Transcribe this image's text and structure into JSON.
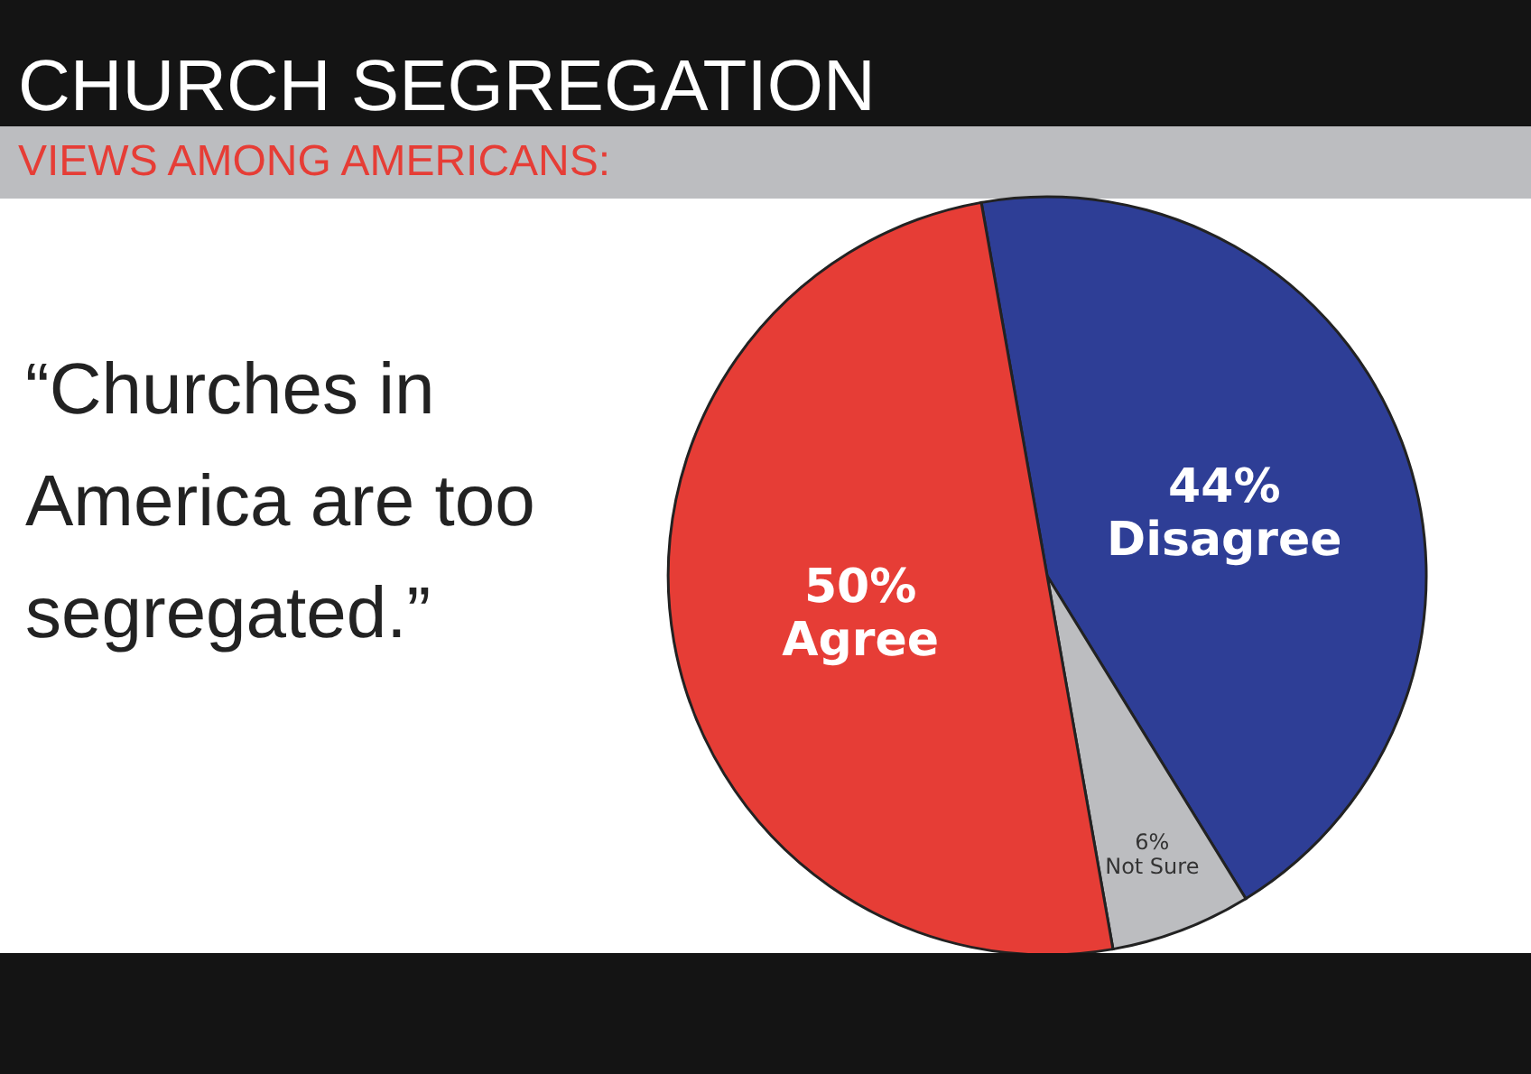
{
  "chart_data": {
    "type": "pie",
    "title": "CHURCH SEGREGATION",
    "subtitle": "VIEWS AMONG AMERICANS:",
    "annotations": [
      "“Churches in America are too segregated.”"
    ],
    "categories": [
      "Disagree",
      "Not Sure",
      "Agree"
    ],
    "values": [
      44,
      6,
      50
    ],
    "colors": [
      "#2e3e96",
      "#bcbdc0",
      "#e63d36"
    ],
    "value_labels": [
      "44%",
      "6%",
      "50%"
    ],
    "legend": false
  }
}
